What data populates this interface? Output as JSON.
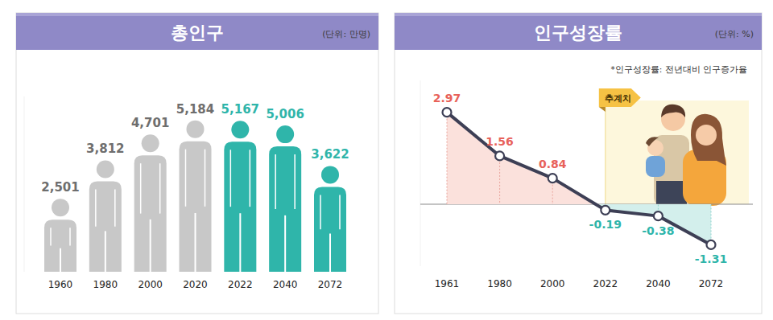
{
  "chart_data": [
    {
      "type": "bar",
      "title": "총인구",
      "subtitle": "(단위: 만명)",
      "categories": [
        "1960",
        "1980",
        "2000",
        "2020",
        "2022",
        "2040",
        "2072"
      ],
      "values": [
        2501,
        3812,
        4701,
        5184,
        5167,
        5006,
        3622
      ],
      "value_labels": [
        "2,501",
        "3,812",
        "4,701",
        "5,184",
        "5,167",
        "5,006",
        "3,622"
      ],
      "colors": [
        "#c8c8c8",
        "#c8c8c8",
        "#c8c8c8",
        "#c8c8c8",
        "#2fb5aa",
        "#2fb5aa",
        "#2fb5aa"
      ],
      "ylim": [
        0,
        6000
      ],
      "data_labels": true,
      "tick_labels": "x",
      "grid": false
    },
    {
      "type": "line",
      "title": "인구성장률",
      "subtitle": "(단위: %)",
      "note": "*인구성장률: 전년대비 인구증가율",
      "annotations": [
        {
          "text": "추계치",
          "x": "2022"
        }
      ],
      "categories": [
        "1961",
        "1980",
        "2000",
        "2022",
        "2040",
        "2072"
      ],
      "values": [
        2.97,
        1.56,
        0.84,
        -0.19,
        -0.38,
        -1.31
      ],
      "color": "#3d3f55",
      "marker": "circle",
      "ylim": [
        -2,
        4
      ],
      "data_labels": true,
      "tick_labels": false,
      "grid": false
    }
  ]
}
